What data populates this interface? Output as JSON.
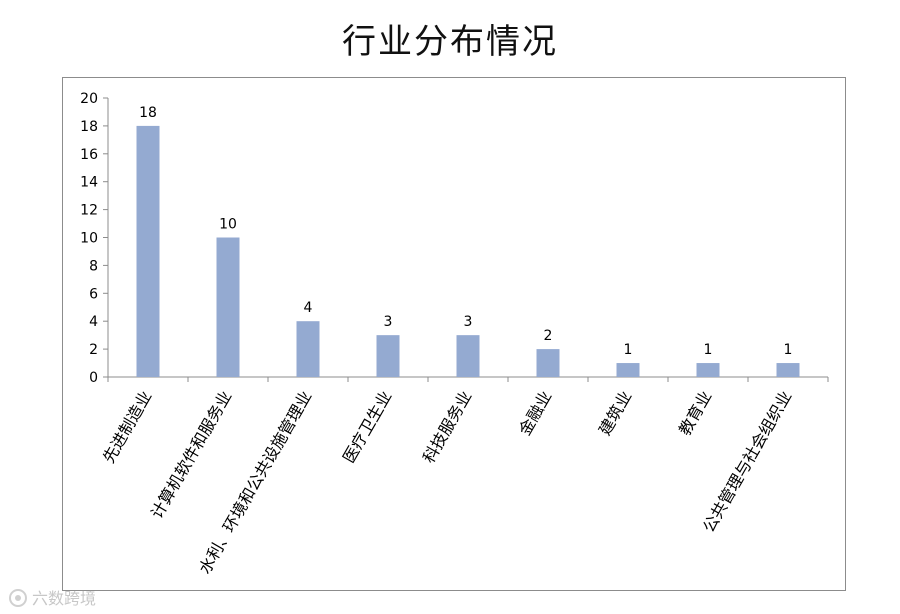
{
  "chart_data": {
    "type": "bar",
    "title": "行业分布情况",
    "categories": [
      "先进制造业",
      "计算机软件和服务业",
      "水利、环境和公共设施管理业",
      "医疗卫生业",
      "科技服务业",
      "金融业",
      "建筑业",
      "教育业",
      "公共管理与社会组织业"
    ],
    "values": [
      18,
      10,
      4,
      3,
      3,
      2,
      1,
      1,
      1
    ],
    "ylim": [
      0,
      20
    ],
    "yticks": [
      0,
      2,
      4,
      6,
      8,
      10,
      12,
      14,
      16,
      18,
      20
    ],
    "xlabel": "",
    "ylabel": "",
    "grid": false,
    "legend": "none",
    "colors": {
      "bar": "#94aad1",
      "axis": "#8c8c8c",
      "text": "#000000"
    }
  },
  "watermark": {
    "text": "六数跨境",
    "icon": "brand-logo-icon"
  }
}
